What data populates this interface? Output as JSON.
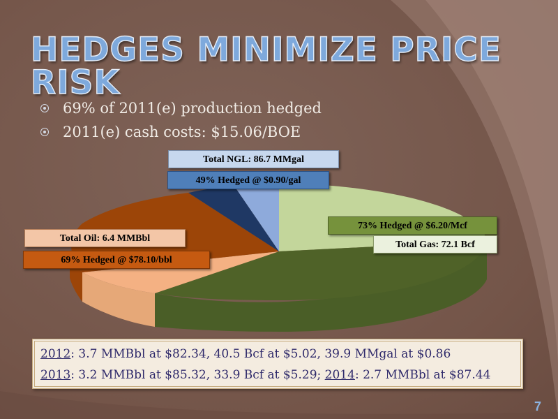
{
  "slide": {
    "title": "HEDGES MINIMIZE PRICE RISK",
    "page_number": "7",
    "colors": {
      "background": "#7b5e52",
      "title": "#7ea9dc",
      "text": "#f1ece6",
      "box_text": "#2f2a6b"
    }
  },
  "bullets": [
    {
      "text": "69% of 2011(e) production hedged",
      "icon": "circled-dot-bullet-icon"
    },
    {
      "text": "2011(e) cash costs: $15.06/BOE",
      "icon": "circled-dot-bullet-icon"
    }
  ],
  "chart_data": {
    "type": "pie",
    "title": "",
    "style": "3d-exploded",
    "slices": [
      {
        "category": "Gas",
        "total": "Total Gas: 72.1 Bcf",
        "hedged": "73% Hedged @ $6.20/Mcf",
        "hedged_fraction": 0.73,
        "share": 0.6,
        "color": "#76923c",
        "light_color": "#c3d69b"
      },
      {
        "category": "Oil",
        "total": "Total Oil: 6.4 MMBbl",
        "hedged": "69% Hedged @ $78.10/bbl",
        "hedged_fraction": 0.69,
        "share": 0.3,
        "color": "#c55a11",
        "light_color": "#f4b183"
      },
      {
        "category": "NGL",
        "total": "Total NGL: 86.7 MMgal",
        "hedged": "49% Hedged @ $0.90/gal",
        "hedged_fraction": 0.49,
        "share": 0.1,
        "color": "#1f3864",
        "light_color": "#8eaadb"
      }
    ]
  },
  "future_hedges": {
    "line1": {
      "year": "2012",
      "text": ": 3.7 MMBbl at $82.34, 40.5 Bcf at $5.02, 39.9 MMgal at $0.86"
    },
    "line2": {
      "year": "2013",
      "text": ": 3.2 MMBbl at $85.32, 33.9 Bcf at $5.29; ",
      "year2": "2014",
      "text2": ": 2.7 MMBbl at $87.44"
    }
  }
}
